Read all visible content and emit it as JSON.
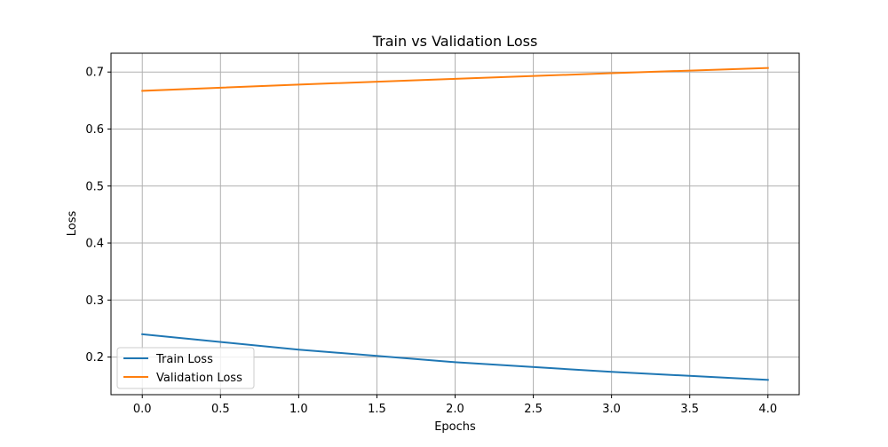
{
  "chart_data": {
    "type": "line",
    "title": "Train vs Validation Loss",
    "xlabel": "Epochs",
    "ylabel": "Loss",
    "x": [
      0,
      1,
      2,
      3,
      4
    ],
    "series": [
      {
        "name": "Train Loss",
        "color": "#1f77b4",
        "values": [
          0.24,
          0.213,
          0.191,
          0.174,
          0.16
        ]
      },
      {
        "name": "Validation Loss",
        "color": "#ff7f0e",
        "values": [
          0.667,
          0.678,
          0.688,
          0.698,
          0.707
        ]
      }
    ],
    "xlim": [
      -0.2,
      4.2
    ],
    "ylim": [
      0.134,
      0.733
    ],
    "xticks": [
      0.0,
      0.5,
      1.0,
      1.5,
      2.0,
      2.5,
      3.0,
      3.5,
      4.0
    ],
    "xtick_labels": [
      "0.0",
      "0.5",
      "1.0",
      "1.5",
      "2.0",
      "2.5",
      "3.0",
      "3.5",
      "4.0"
    ],
    "yticks": [
      0.2,
      0.3,
      0.4,
      0.5,
      0.6,
      0.7
    ],
    "ytick_labels": [
      "0.2",
      "0.3",
      "0.4",
      "0.5",
      "0.6",
      "0.7"
    ],
    "grid": true,
    "legend_position": "lower-left"
  }
}
